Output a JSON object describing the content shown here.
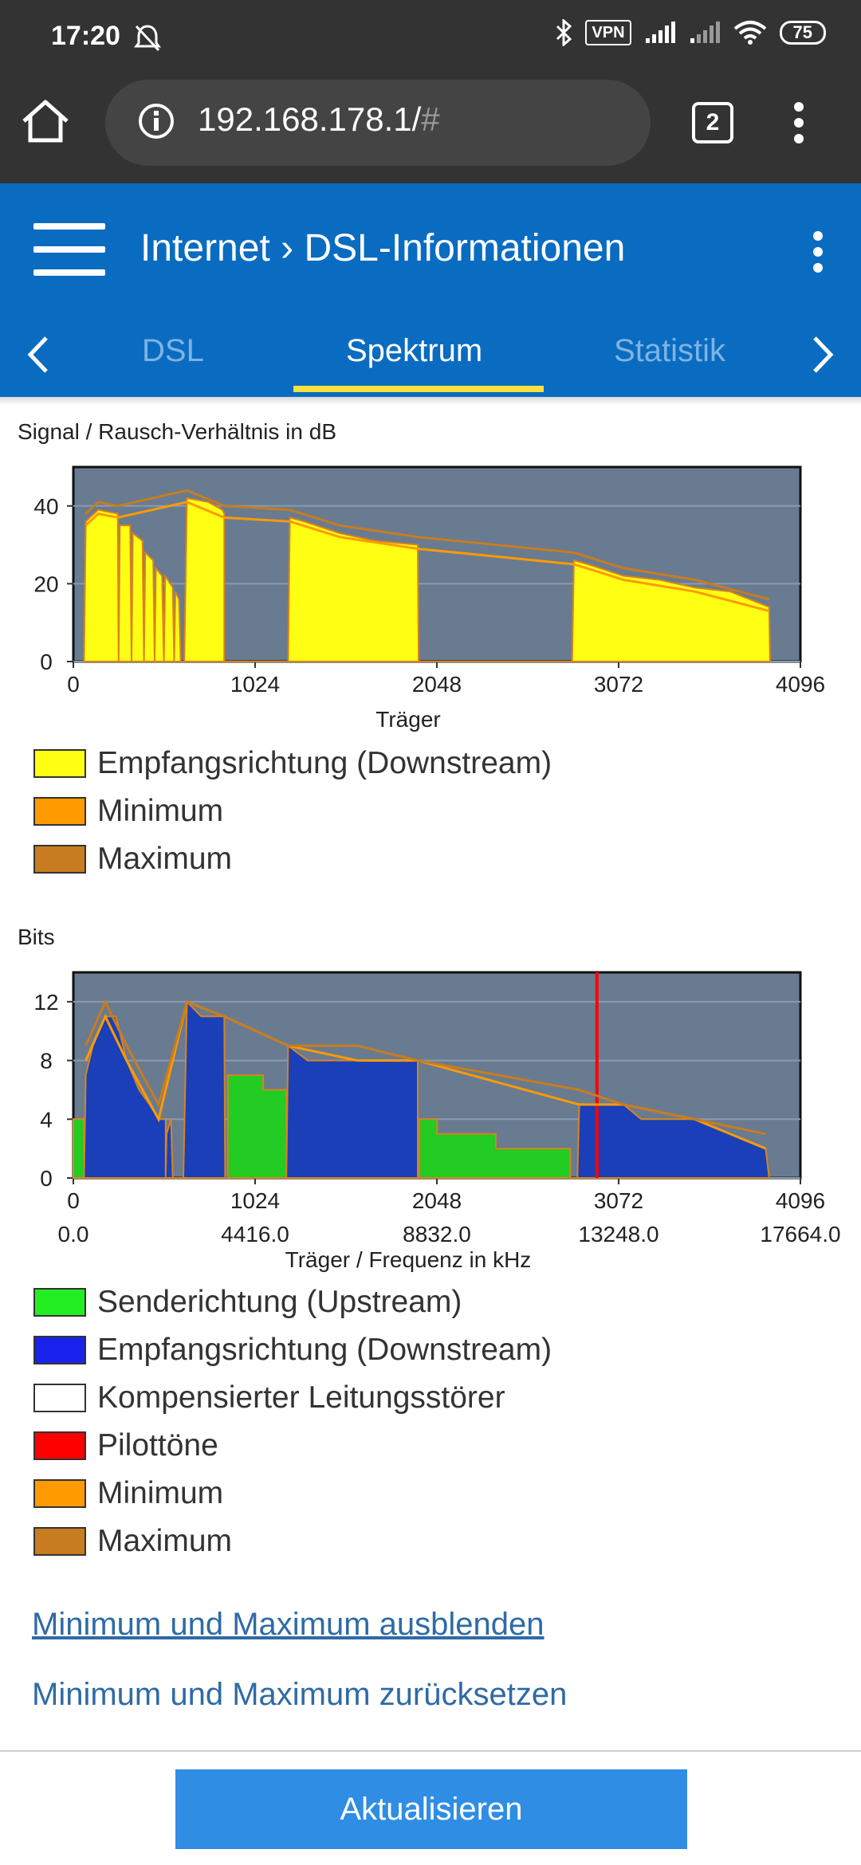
{
  "status_bar": {
    "time": "17:20",
    "vpn": "VPN",
    "battery": "75",
    "icons": [
      "dnd-off-icon",
      "bluetooth-icon",
      "vpn-icon",
      "signal-icon",
      "signal-icon",
      "wifi-icon",
      "battery-icon"
    ]
  },
  "browser": {
    "url": "192.168.178.1/",
    "url_hash": "#",
    "tab_count": "2",
    "icons": [
      "home-icon",
      "info-icon",
      "tabs-icon",
      "more-vert-icon"
    ]
  },
  "header": {
    "breadcrumb_parent": "Internet",
    "breadcrumb_separator": "›",
    "breadcrumb_current": "DSL-Informationen",
    "tabs": [
      {
        "label": "DSL",
        "active": false
      },
      {
        "label": "Spektrum",
        "active": true
      },
      {
        "label": "Statistik",
        "active": false
      }
    ],
    "accent_color": "#0a6cc1",
    "tab_indicator_color": "#f7e13f"
  },
  "snr_chart": {
    "label": "Signal / Rausch-Verhältnis in dB",
    "xlabel": "Träger",
    "x_ticks": [
      "0",
      "1024",
      "2048",
      "3072",
      "4096"
    ],
    "y_ticks": [
      "0",
      "20",
      "40"
    ],
    "legend": [
      {
        "label": "Empfangsrichtung (Downstream)",
        "color": "#ffff14"
      },
      {
        "label": "Minimum",
        "color": "#ff9a00"
      },
      {
        "label": "Maximum",
        "color": "#c87c20"
      }
    ]
  },
  "bits_chart": {
    "label": "Bits",
    "xlabel": "Träger / Frequenz in kHz",
    "x_ticks": [
      "0",
      "1024",
      "2048",
      "3072",
      "4096"
    ],
    "freq_ticks": [
      "0.0",
      "4416.0",
      "8832.0",
      "13248.0",
      "17664.0"
    ],
    "y_ticks": [
      "0",
      "4",
      "8",
      "12"
    ],
    "legend": [
      {
        "label": "Senderichtung (Upstream)",
        "color": "#22ee22"
      },
      {
        "label": "Empfangsrichtung (Downstream)",
        "color": "#1a22ee"
      },
      {
        "label": "Kompensierter Leitungsstörer",
        "color": "#ffffff"
      },
      {
        "label": "Pilottöne",
        "color": "#ff0000"
      },
      {
        "label": "Minimum",
        "color": "#ff9a00"
      },
      {
        "label": "Maximum",
        "color": "#c87c20"
      }
    ]
  },
  "chart_data": [
    {
      "type": "area",
      "title": "Signal / Rausch-Verhältnis in dB",
      "xlabel": "Träger",
      "ylabel": "",
      "xlim": [
        0,
        4096
      ],
      "ylim": [
        0,
        50
      ],
      "grid": true,
      "legend": "bottom",
      "series": [
        {
          "name": "Empfangsrichtung (Downstream)",
          "points": [
            [
              60,
              0
            ],
            [
              70,
              36
            ],
            [
              140,
              39
            ],
            [
              250,
              38
            ],
            [
              255,
              0
            ],
            [
              262,
              35
            ],
            [
              320,
              35
            ],
            [
              328,
              0
            ],
            [
              335,
              33
            ],
            [
              390,
              31
            ],
            [
              398,
              0
            ],
            [
              405,
              28
            ],
            [
              450,
              26
            ],
            [
              458,
              0
            ],
            [
              465,
              24
            ],
            [
              500,
              22
            ],
            [
              510,
              0
            ],
            [
              518,
              22
            ],
            [
              560,
              19
            ],
            [
              568,
              0
            ],
            [
              575,
              18
            ],
            [
              595,
              16
            ],
            [
              605,
              0
            ],
            [
              625,
              0
            ],
            [
              640,
              42
            ],
            [
              760,
              41
            ],
            [
              840,
              39
            ],
            [
              850,
              38
            ],
            [
              850,
              0
            ],
            [
              1210,
              0
            ],
            [
              1220,
              37
            ],
            [
              1300,
              36
            ],
            [
              1500,
              33
            ],
            [
              1700,
              31
            ],
            [
              1940,
              30
            ],
            [
              1945,
              0
            ],
            [
              2810,
              0
            ],
            [
              2820,
              26
            ],
            [
              2900,
              25
            ],
            [
              3100,
              22
            ],
            [
              3300,
              21
            ],
            [
              3500,
              19
            ],
            [
              3700,
              18
            ],
            [
              3920,
              14
            ],
            [
              3925,
              0
            ]
          ]
        },
        {
          "name": "Minimum",
          "points": [
            [
              70,
              35
            ],
            [
              140,
              38
            ],
            [
              250,
              37
            ],
            [
              640,
              41
            ],
            [
              850,
              37
            ],
            [
              1220,
              36
            ],
            [
              1500,
              32
            ],
            [
              1940,
              29
            ],
            [
              2820,
              25
            ],
            [
              3100,
              21
            ],
            [
              3500,
              18
            ],
            [
              3920,
              13
            ]
          ]
        },
        {
          "name": "Maximum",
          "points": [
            [
              70,
              38
            ],
            [
              140,
              41
            ],
            [
              250,
              40
            ],
            [
              640,
              44
            ],
            [
              850,
              40
            ],
            [
              1220,
              39
            ],
            [
              1500,
              35
            ],
            [
              1940,
              32
            ],
            [
              2820,
              28
            ],
            [
              3100,
              24
            ],
            [
              3500,
              21
            ],
            [
              3920,
              16
            ]
          ]
        }
      ]
    },
    {
      "type": "area",
      "title": "Bits",
      "xlabel": "Träger / Frequenz in kHz",
      "ylabel": "",
      "xlim": [
        0,
        4096
      ],
      "ylim": [
        0,
        14
      ],
      "grid": true,
      "legend": "bottom",
      "series": [
        {
          "name": "Senderichtung (Upstream)",
          "points": [
            [
              0,
              0
            ],
            [
              0,
              4
            ],
            [
              60,
              4
            ],
            [
              60,
              0
            ],
            [
              870,
              0
            ],
            [
              870,
              7
            ],
            [
              1070,
              7
            ],
            [
              1070,
              6
            ],
            [
              1200,
              6
            ],
            [
              1200,
              0
            ],
            [
              1950,
              0
            ],
            [
              1950,
              4
            ],
            [
              2050,
              4
            ],
            [
              2050,
              3
            ],
            [
              2380,
              3
            ],
            [
              2380,
              2
            ],
            [
              2800,
              2
            ],
            [
              2800,
              0
            ]
          ]
        },
        {
          "name": "Empfangsrichtung (Downstream)",
          "points": [
            [
              60,
              0
            ],
            [
              70,
              7
            ],
            [
              110,
              9
            ],
            [
              180,
              11
            ],
            [
              240,
              11
            ],
            [
              300,
              8
            ],
            [
              370,
              6
            ],
            [
              430,
              5
            ],
            [
              480,
              4
            ],
            [
              500,
              4
            ],
            [
              520,
              4
            ],
            [
              520,
              0
            ],
            [
              520,
              0
            ],
            [
              525,
              3
            ],
            [
              550,
              4
            ],
            [
              560,
              0
            ],
            [
              620,
              0
            ],
            [
              640,
              12
            ],
            [
              720,
              11
            ],
            [
              850,
              11
            ],
            [
              855,
              0
            ],
            [
              1200,
              0
            ],
            [
              1210,
              9
            ],
            [
              1320,
              8
            ],
            [
              1600,
              8
            ],
            [
              1940,
              8
            ],
            [
              1940,
              0
            ],
            [
              2840,
              0
            ],
            [
              2850,
              5
            ],
            [
              3100,
              5
            ],
            [
              3200,
              4
            ],
            [
              3500,
              4
            ],
            [
              3700,
              3
            ],
            [
              3900,
              2
            ],
            [
              3920,
              0
            ]
          ]
        },
        {
          "name": "Pilottöne",
          "points": [
            [
              2950,
              0
            ],
            [
              2950,
              14
            ]
          ]
        },
        {
          "name": "Minimum",
          "points": [
            [
              70,
              8
            ],
            [
              180,
              11
            ],
            [
              300,
              8
            ],
            [
              480,
              4
            ],
            [
              640,
              12
            ],
            [
              850,
              11
            ],
            [
              1210,
              9
            ],
            [
              1600,
              8
            ],
            [
              1940,
              8
            ],
            [
              2850,
              5
            ],
            [
              3100,
              5
            ],
            [
              3500,
              4
            ],
            [
              3900,
              2
            ]
          ]
        },
        {
          "name": "Maximum",
          "points": [
            [
              70,
              9
            ],
            [
              180,
              12
            ],
            [
              300,
              9
            ],
            [
              480,
              5
            ],
            [
              640,
              12
            ],
            [
              850,
              11
            ],
            [
              1210,
              9
            ],
            [
              1600,
              9
            ],
            [
              1940,
              8
            ],
            [
              2850,
              6
            ],
            [
              3100,
              5
            ],
            [
              3500,
              4
            ],
            [
              3900,
              3
            ]
          ]
        }
      ]
    }
  ],
  "actions": {
    "hide_minmax": "Minimum und Maximum ausblenden",
    "reset_minmax": "Minimum und Maximum zurücksetzen",
    "update": "Aktualisieren"
  }
}
